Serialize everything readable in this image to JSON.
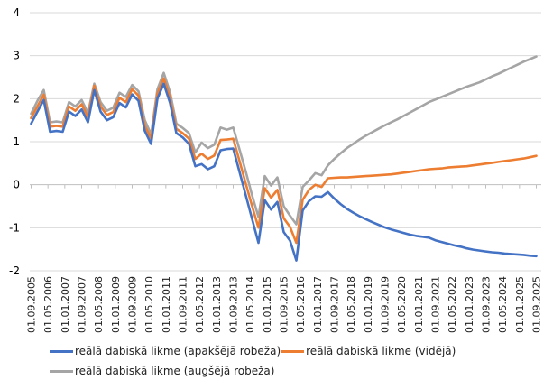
{
  "chart_data": {
    "type": "line",
    "title": "",
    "xlabel": "",
    "ylabel": "",
    "ylim": [
      -2,
      4
    ],
    "yticks": [
      "-2",
      "-1",
      "0",
      "1",
      "2",
      "3",
      "4"
    ],
    "grid": true,
    "legend_position": "bottom",
    "x_frequency": "quarterly, 01.09.2005 – 01.09.2025",
    "x_tick_labels": [
      "01.09.2005",
      "01.05.2006",
      "01.01.2007",
      "01.09.2007",
      "01.05.2008",
      "01.01.2009",
      "01.09.2009",
      "01.05.2010",
      "01.01.2011",
      "01.09.2011",
      "01.05.2012",
      "01.01.2013",
      "01.09.2013",
      "01.05.2014",
      "01.01.2015",
      "01.09.2015",
      "01.05.2016",
      "01.01.2017",
      "01.09.2017",
      "01.05.2018",
      "01.01.2019",
      "01.09.2019",
      "01.05.2020",
      "01.01.2021",
      "01.09.2021",
      "01.05.2022",
      "01.01.2023",
      "01.09.2023",
      "01.05.2024",
      "01.01.2025",
      "01.09.2025"
    ],
    "series": [
      {
        "name": "reālā dabiskā likme (apakšējā robeža)",
        "color": "#4472C4",
        "values": [
          1.42,
          1.7,
          1.97,
          1.23,
          1.25,
          1.23,
          1.7,
          1.6,
          1.75,
          1.45,
          2.2,
          1.7,
          1.5,
          1.57,
          1.9,
          1.8,
          2.1,
          1.95,
          1.25,
          0.95,
          2.0,
          2.35,
          1.9,
          1.2,
          1.1,
          0.95,
          0.43,
          0.48,
          0.36,
          0.43,
          0.8,
          0.83,
          0.84,
          0.3,
          -0.25,
          -0.8,
          -1.35,
          -0.36,
          -0.58,
          -0.4,
          -1.1,
          -1.3,
          -1.76,
          -0.6,
          -0.38,
          -0.27,
          -0.28,
          -0.17,
          -0.32,
          -0.45,
          -0.56,
          -0.65,
          -0.73,
          -0.8,
          -0.87,
          -0.93,
          -0.99,
          -1.04,
          -1.08,
          -1.12,
          -1.16,
          -1.19,
          -1.21,
          -1.23,
          -1.29,
          -1.33,
          -1.37,
          -1.41,
          -1.44,
          -1.48,
          -1.51,
          -1.53,
          -1.55,
          -1.57,
          -1.58,
          -1.6,
          -1.61,
          -1.62,
          -1.63,
          -1.65,
          -1.66
        ]
      },
      {
        "name": "reālā dabiskā likme (vidējā)",
        "color": "#ED7D31",
        "values": [
          1.55,
          1.82,
          2.09,
          1.35,
          1.37,
          1.35,
          1.82,
          1.72,
          1.87,
          1.57,
          2.3,
          1.82,
          1.62,
          1.69,
          2.02,
          1.92,
          2.22,
          2.07,
          1.37,
          1.07,
          2.12,
          2.47,
          2.02,
          1.3,
          1.2,
          1.07,
          0.6,
          0.72,
          0.6,
          0.68,
          1.04,
          1.05,
          1.07,
          0.55,
          0.02,
          -0.5,
          -1.0,
          -0.08,
          -0.3,
          -0.12,
          -0.78,
          -0.98,
          -1.35,
          -0.35,
          -0.12,
          0.0,
          -0.05,
          0.15,
          0.16,
          0.17,
          0.17,
          0.18,
          0.19,
          0.2,
          0.21,
          0.22,
          0.23,
          0.24,
          0.26,
          0.28,
          0.3,
          0.32,
          0.34,
          0.36,
          0.37,
          0.38,
          0.4,
          0.41,
          0.42,
          0.43,
          0.45,
          0.47,
          0.49,
          0.51,
          0.53,
          0.55,
          0.57,
          0.59,
          0.61,
          0.64,
          0.67
        ]
      },
      {
        "name": "reālā dabiskā likme (augšējā robeža)",
        "color": "#A5A5A5",
        "values": [
          1.65,
          1.95,
          2.2,
          1.45,
          1.47,
          1.45,
          1.92,
          1.82,
          1.97,
          1.67,
          2.35,
          1.92,
          1.72,
          1.79,
          2.14,
          2.04,
          2.32,
          2.17,
          1.5,
          1.17,
          2.22,
          2.6,
          2.15,
          1.42,
          1.32,
          1.2,
          0.75,
          0.98,
          0.85,
          0.93,
          1.33,
          1.28,
          1.33,
          0.82,
          0.3,
          -0.25,
          -0.75,
          0.2,
          -0.02,
          0.17,
          -0.5,
          -0.72,
          -0.92,
          -0.05,
          0.1,
          0.27,
          0.22,
          0.45,
          0.6,
          0.73,
          0.85,
          0.95,
          1.05,
          1.14,
          1.22,
          1.3,
          1.38,
          1.45,
          1.52,
          1.6,
          1.68,
          1.76,
          1.84,
          1.92,
          1.98,
          2.04,
          2.1,
          2.16,
          2.22,
          2.28,
          2.33,
          2.38,
          2.45,
          2.52,
          2.58,
          2.65,
          2.72,
          2.79,
          2.86,
          2.92,
          2.98
        ]
      }
    ]
  }
}
